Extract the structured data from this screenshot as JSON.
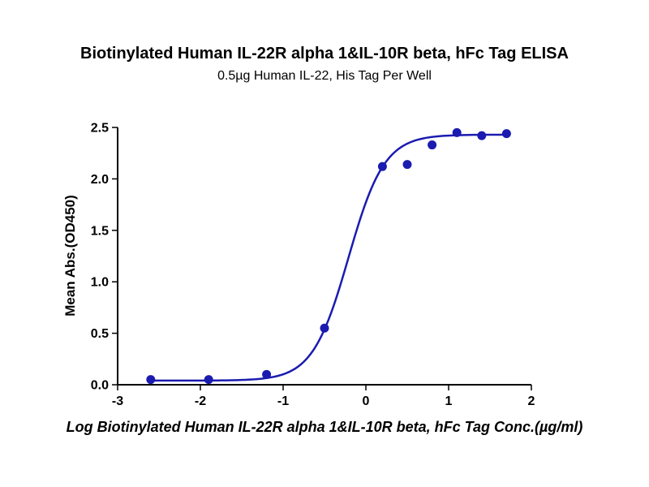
{
  "chart_data": {
    "type": "scatter",
    "title": "Biotinylated Human IL-22R alpha 1&IL-10R beta, hFc Tag ELISA",
    "subtitle": "0.5µg Human IL-22, His Tag Per Well",
    "xlabel": "Log Biotinylated Human IL-22R alpha 1&IL-10R beta, hFc Tag Conc.(µg/ml)",
    "ylabel": "Mean Abs.(OD450)",
    "xlim": [
      -3,
      2
    ],
    "ylim": [
      0,
      2.5
    ],
    "x_ticks": [
      "-3",
      "-2",
      "-1",
      "0",
      "1",
      "2"
    ],
    "x_tick_values": [
      -3,
      -2,
      -1,
      0,
      1,
      2
    ],
    "y_ticks": [
      "0.0",
      "0.5",
      "1.0",
      "1.5",
      "2.0",
      "2.5"
    ],
    "y_tick_values": [
      0,
      0.5,
      1.0,
      1.5,
      2.0,
      2.5
    ],
    "grid": false,
    "legend": "none",
    "series": [
      {
        "name": "Mean Abs.(OD450)",
        "points": [
          [
            -2.6,
            0.05
          ],
          [
            -1.9,
            0.05
          ],
          [
            -1.2,
            0.1
          ],
          [
            -0.5,
            0.55
          ],
          [
            0.2,
            2.12
          ],
          [
            0.5,
            2.14
          ],
          [
            0.8,
            2.33
          ],
          [
            1.1,
            2.45
          ],
          [
            1.4,
            2.42
          ],
          [
            1.7,
            2.44
          ]
        ]
      }
    ],
    "fit": {
      "model": "4PL-sigmoid",
      "bottom": 0.04,
      "top": 2.43,
      "logEC50": -0.21,
      "hill": 2.0,
      "x_range": [
        -2.62,
        1.72
      ]
    },
    "colors": {
      "points": "#1b1bb0",
      "curve": "#1b1bb0",
      "axis": "#000000",
      "text": "#000000"
    }
  }
}
